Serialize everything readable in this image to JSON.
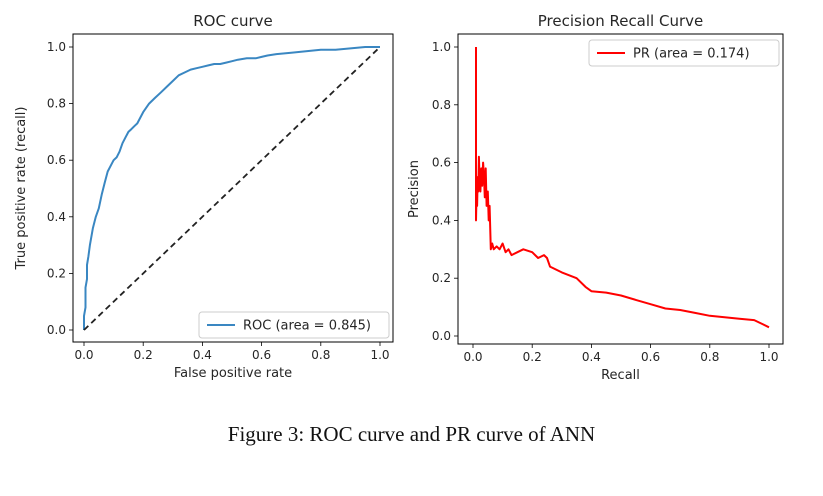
{
  "caption": "Figure 3: ROC curve and PR curve of ANN",
  "colors": {
    "roc": "#3a87c2",
    "pr": "#ff0000",
    "diag": "#222222"
  },
  "chart_data": [
    {
      "type": "line",
      "title": "ROC curve",
      "xlabel": "False positive rate",
      "ylabel": "True positive rate (recall)",
      "xlim": [
        0,
        1
      ],
      "ylim": [
        0,
        1
      ],
      "xticks": [
        "0.0",
        "0.2",
        "0.4",
        "0.6",
        "0.8",
        "1.0"
      ],
      "yticks": [
        "0.0",
        "0.2",
        "0.4",
        "0.6",
        "0.8",
        "1.0"
      ],
      "grid": false,
      "legend": "lower-right",
      "series": [
        {
          "name": "ROC (area = 0.845)",
          "x": [
            0.0,
            0.0,
            0.005,
            0.005,
            0.01,
            0.01,
            0.015,
            0.02,
            0.025,
            0.03,
            0.04,
            0.05,
            0.06,
            0.07,
            0.08,
            0.09,
            0.1,
            0.11,
            0.12,
            0.13,
            0.14,
            0.15,
            0.16,
            0.17,
            0.18,
            0.2,
            0.22,
            0.24,
            0.26,
            0.28,
            0.3,
            0.32,
            0.34,
            0.36,
            0.38,
            0.4,
            0.42,
            0.44,
            0.46,
            0.48,
            0.5,
            0.52,
            0.55,
            0.58,
            0.6,
            0.62,
            0.65,
            0.7,
            0.75,
            0.8,
            0.85,
            0.9,
            0.95,
            1.0
          ],
          "y": [
            0.0,
            0.05,
            0.08,
            0.15,
            0.18,
            0.23,
            0.26,
            0.3,
            0.33,
            0.36,
            0.4,
            0.43,
            0.48,
            0.52,
            0.56,
            0.58,
            0.6,
            0.61,
            0.63,
            0.66,
            0.68,
            0.7,
            0.71,
            0.72,
            0.73,
            0.77,
            0.8,
            0.82,
            0.84,
            0.86,
            0.88,
            0.9,
            0.91,
            0.92,
            0.925,
            0.93,
            0.935,
            0.94,
            0.94,
            0.945,
            0.95,
            0.955,
            0.96,
            0.96,
            0.965,
            0.97,
            0.975,
            0.98,
            0.985,
            0.99,
            0.99,
            0.995,
            1.0,
            1.0
          ]
        },
        {
          "name": "",
          "style": "dashed",
          "x": [
            0,
            1
          ],
          "y": [
            0,
            1
          ]
        }
      ]
    },
    {
      "type": "line",
      "title": "Precision Recall Curve",
      "xlabel": "Recall",
      "ylabel": "Precision",
      "xlim": [
        0,
        1
      ],
      "ylim": [
        0,
        1
      ],
      "xticks": [
        "0.0",
        "0.2",
        "0.4",
        "0.6",
        "0.8",
        "1.0"
      ],
      "yticks": [
        "0.0",
        "0.2",
        "0.4",
        "0.6",
        "0.8",
        "1.0"
      ],
      "grid": false,
      "legend": "top-right",
      "series": [
        {
          "name": "PR (area = 0.174)",
          "x": [
            0.01,
            0.01,
            0.012,
            0.014,
            0.016,
            0.018,
            0.02,
            0.022,
            0.025,
            0.028,
            0.031,
            0.034,
            0.037,
            0.04,
            0.043,
            0.046,
            0.05,
            0.053,
            0.056,
            0.06,
            0.065,
            0.07,
            0.08,
            0.09,
            0.1,
            0.11,
            0.12,
            0.13,
            0.15,
            0.17,
            0.2,
            0.22,
            0.24,
            0.25,
            0.26,
            0.28,
            0.3,
            0.35,
            0.38,
            0.4,
            0.45,
            0.5,
            0.55,
            0.6,
            0.65,
            0.7,
            0.75,
            0.8,
            0.85,
            0.9,
            0.95,
            0.98,
            1.0
          ],
          "y": [
            1.0,
            0.4,
            0.5,
            0.45,
            0.55,
            0.5,
            0.62,
            0.55,
            0.5,
            0.58,
            0.52,
            0.6,
            0.55,
            0.48,
            0.58,
            0.45,
            0.5,
            0.4,
            0.45,
            0.3,
            0.32,
            0.3,
            0.31,
            0.3,
            0.32,
            0.29,
            0.3,
            0.28,
            0.29,
            0.3,
            0.29,
            0.27,
            0.28,
            0.27,
            0.24,
            0.23,
            0.22,
            0.2,
            0.17,
            0.155,
            0.15,
            0.14,
            0.125,
            0.11,
            0.095,
            0.09,
            0.08,
            0.07,
            0.065,
            0.06,
            0.055,
            0.04,
            0.03
          ]
        }
      ]
    }
  ]
}
